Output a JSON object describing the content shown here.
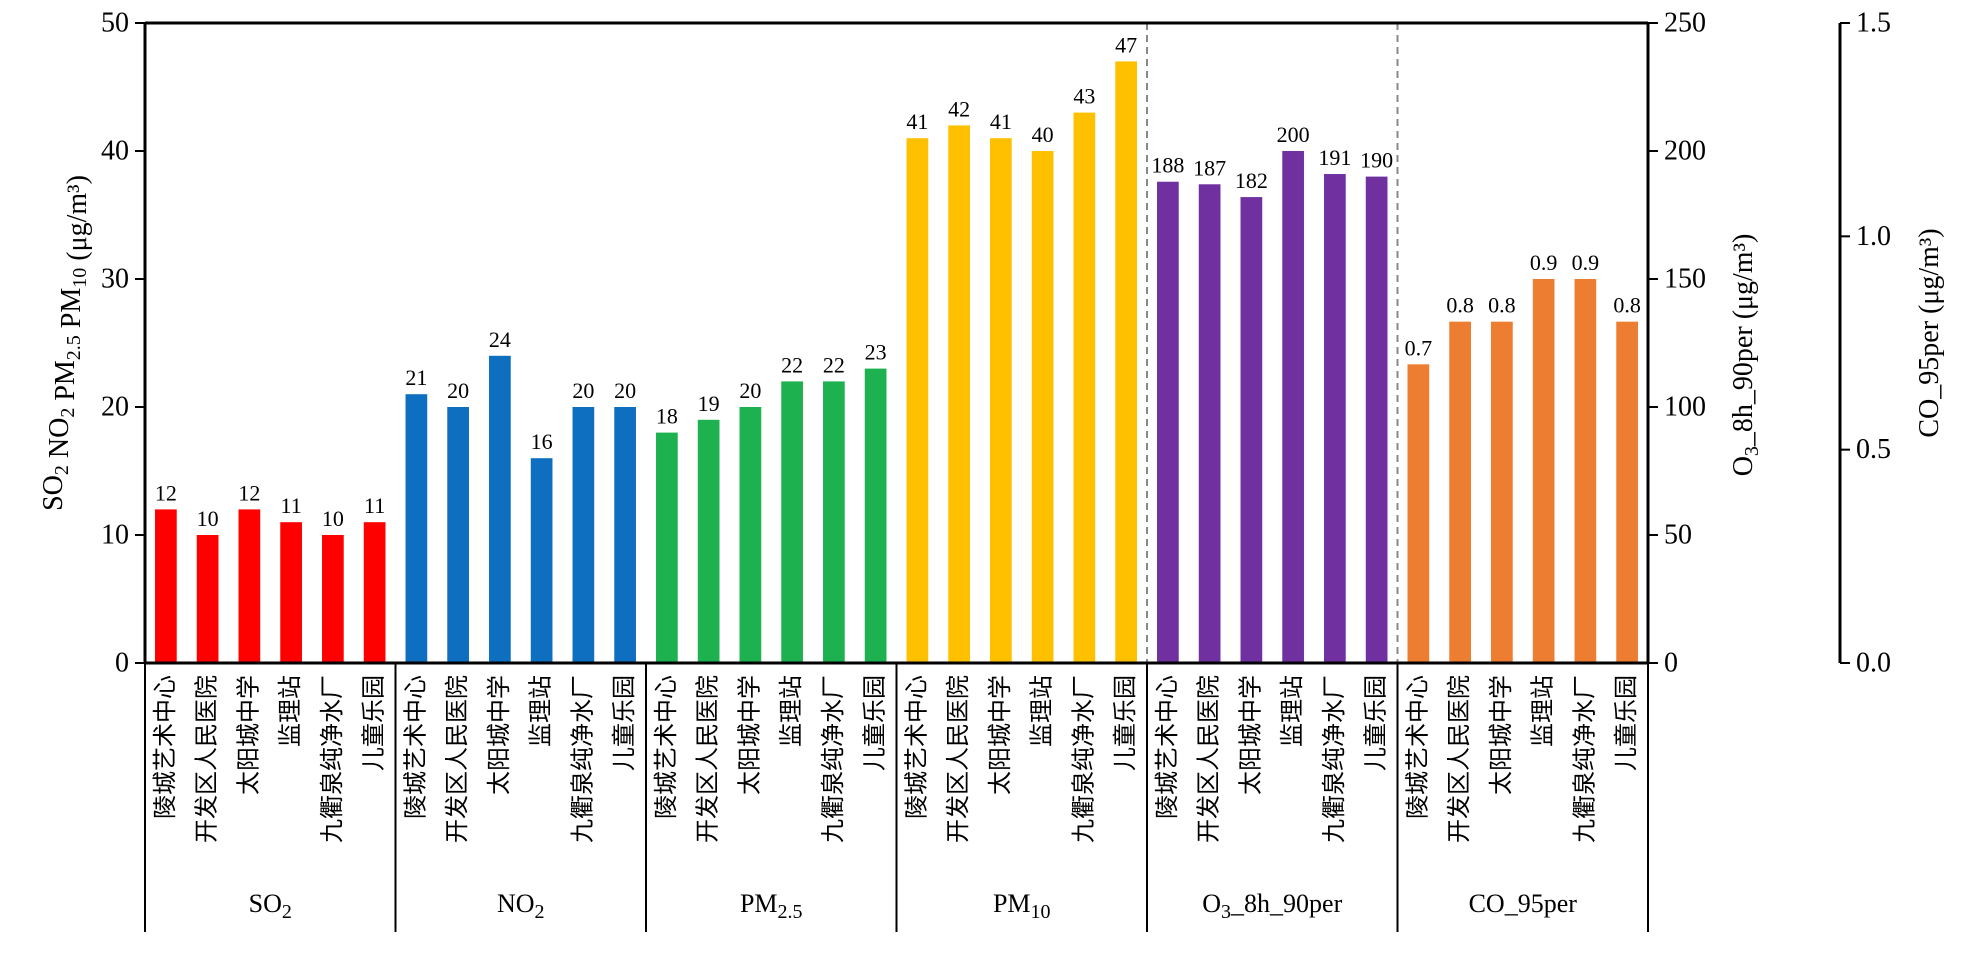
{
  "chart_data": {
    "type": "bar",
    "categories": [
      "陵城艺术中心",
      "开发区人民医院",
      "太阳城中学",
      "监理站",
      "九衢泉纯净水厂",
      "儿童乐园"
    ],
    "series": [
      {
        "name": "SO2",
        "axis": "left",
        "color": "#ff0000",
        "values": [
          12,
          10,
          12,
          11,
          10,
          11
        ],
        "labels": [
          "12",
          "10",
          "12",
          "11",
          "10",
          "11"
        ]
      },
      {
        "name": "NO2",
        "axis": "left",
        "color": "#0e6fc1",
        "values": [
          21,
          20,
          24,
          16,
          20,
          20
        ],
        "labels": [
          "21",
          "20",
          "24",
          "16",
          "20",
          "20"
        ]
      },
      {
        "name": "PM2.5",
        "axis": "left",
        "color": "#1db150",
        "values": [
          18,
          19,
          20,
          22,
          22,
          23
        ],
        "labels": [
          "18",
          "19",
          "20",
          "22",
          "22",
          "23"
        ]
      },
      {
        "name": "PM10",
        "axis": "left",
        "color": "#ffc000",
        "values": [
          41,
          42,
          41,
          40,
          43,
          47
        ],
        "labels": [
          "41",
          "42",
          "41",
          "40",
          "43",
          "47"
        ]
      },
      {
        "name": "O3_8h_90per",
        "axis": "right1",
        "color": "#7030a0",
        "values": [
          188,
          187,
          182,
          200,
          191,
          190
        ],
        "labels": [
          "188",
          "187",
          "182",
          "200",
          "191",
          "190"
        ]
      },
      {
        "name": "CO_95per",
        "axis": "right2",
        "color": "#ed7d31",
        "values": [
          0.7,
          0.8,
          0.8,
          0.9,
          0.9,
          0.8
        ],
        "labels": [
          "0.7",
          "0.8",
          "0.8",
          "0.9",
          "0.9",
          "0.8"
        ]
      }
    ],
    "axes": {
      "left": {
        "range": [
          0,
          50
        ],
        "ticks": [
          "0",
          "10",
          "20",
          "30",
          "40",
          "50"
        ]
      },
      "right1": {
        "range": [
          0,
          250
        ],
        "ticks": [
          "0",
          "50",
          "100",
          "150",
          "200",
          "250"
        ]
      },
      "right2": {
        "range": [
          0,
          1.5
        ],
        "ticks": [
          "0.0",
          "0.5",
          "1.0",
          "1.5"
        ]
      }
    },
    "grid": false,
    "legend": "none"
  }
}
